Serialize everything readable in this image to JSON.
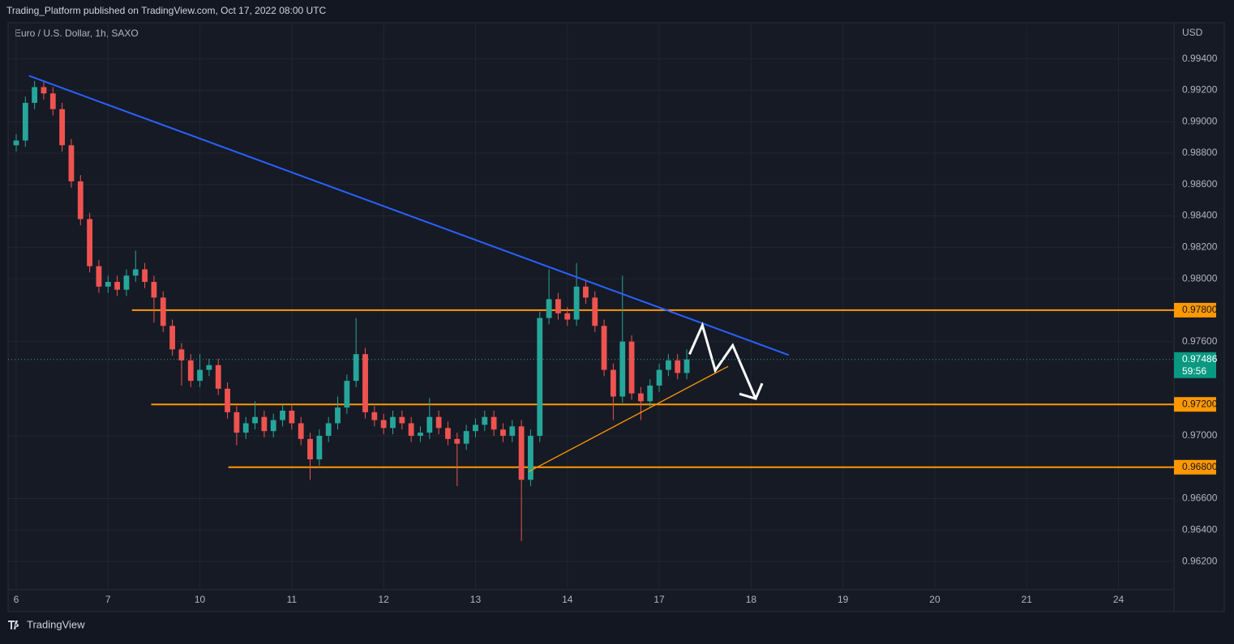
{
  "header": {
    "publisher": "Trading_Platform published on TradingView.com, Oct 17, 2022 08:00 UTC",
    "footer": "TradingView"
  },
  "chart_data": {
    "type": "candlestick",
    "title": "Euro / U.S. Dollar, 1h, SAXO",
    "y_axis_label": "USD",
    "up_color": "#26a69a",
    "down_color": "#ef5350",
    "grid": true,
    "xlim": [
      -0.088,
      12.604
    ],
    "ylim": [
      0.9602,
      0.9962
    ],
    "xticks": [
      {
        "value": 0,
        "label": "6"
      },
      {
        "value": 1,
        "label": "7"
      },
      {
        "value": 2,
        "label": "10"
      },
      {
        "value": 3,
        "label": "11"
      },
      {
        "value": 4,
        "label": "12"
      },
      {
        "value": 5,
        "label": "13"
      },
      {
        "value": 6,
        "label": "14"
      },
      {
        "value": 7,
        "label": "17"
      },
      {
        "value": 8,
        "label": "18"
      },
      {
        "value": 9,
        "label": "19"
      },
      {
        "value": 10,
        "label": "20"
      },
      {
        "value": 11,
        "label": "21"
      },
      {
        "value": 12,
        "label": "24"
      }
    ],
    "yticks": [
      {
        "value": 0.994,
        "label": "0.99400"
      },
      {
        "value": 0.992,
        "label": "0.99200"
      },
      {
        "value": 0.99,
        "label": "0.99000"
      },
      {
        "value": 0.988,
        "label": "0.98800"
      },
      {
        "value": 0.986,
        "label": "0.98600"
      },
      {
        "value": 0.984,
        "label": "0.98400"
      },
      {
        "value": 0.982,
        "label": "0.98200"
      },
      {
        "value": 0.98,
        "label": "0.98000"
      },
      {
        "value": 0.976,
        "label": "0.97600"
      },
      {
        "value": 0.97,
        "label": "0.97000"
      },
      {
        "value": 0.966,
        "label": "0.96600"
      },
      {
        "value": 0.964,
        "label": "0.96400"
      },
      {
        "value": 0.962,
        "label": "0.96200"
      }
    ],
    "x": [
      0,
      0.1,
      0.2,
      0.3,
      0.4,
      0.5,
      0.6,
      0.7,
      0.8,
      0.9,
      1,
      1.1,
      1.2,
      1.3,
      1.4,
      1.5,
      1.6,
      1.7,
      1.8,
      1.9,
      2,
      2.1,
      2.2,
      2.3,
      2.4,
      2.5,
      2.6,
      2.7,
      2.8,
      2.9,
      3,
      3.1,
      3.2,
      3.3,
      3.4,
      3.5,
      3.6,
      3.7,
      3.8,
      3.9,
      4,
      4.1,
      4.2,
      4.3,
      4.4,
      4.5,
      4.6,
      4.7,
      4.8,
      4.9,
      5,
      5.1,
      5.2,
      5.3,
      5.4,
      5.5,
      5.6,
      5.7,
      5.8,
      5.9,
      6,
      6.1,
      6.2,
      6.3,
      6.4,
      6.5,
      6.6,
      6.7,
      6.8,
      6.9,
      7,
      7.1,
      7.2,
      7.3
    ],
    "open": [
      0.9885,
      0.9888,
      0.9912,
      0.9922,
      0.9918,
      0.9908,
      0.9885,
      0.9862,
      0.9838,
      0.9808,
      0.9795,
      0.9798,
      0.9793,
      0.9802,
      0.9806,
      0.9798,
      0.9788,
      0.977,
      0.9755,
      0.9748,
      0.9735,
      0.9742,
      0.9745,
      0.973,
      0.9715,
      0.9702,
      0.9708,
      0.9712,
      0.9703,
      0.971,
      0.9716,
      0.9708,
      0.9698,
      0.9685,
      0.97,
      0.9708,
      0.9718,
      0.9735,
      0.9752,
      0.9715,
      0.971,
      0.9705,
      0.9712,
      0.9708,
      0.97,
      0.9702,
      0.9712,
      0.9705,
      0.9698,
      0.9695,
      0.9703,
      0.9707,
      0.9712,
      0.9704,
      0.97,
      0.9706,
      0.9672,
      0.97,
      0.9775,
      0.9787,
      0.9778,
      0.9774,
      0.9795,
      0.9788,
      0.977,
      0.9742,
      0.9725,
      0.976,
      0.9727,
      0.9722,
      0.9732,
      0.9742,
      0.9748,
      0.974
    ],
    "high": [
      0.9892,
      0.9916,
      0.9926,
      0.9926,
      0.9922,
      0.9912,
      0.9889,
      0.9866,
      0.9842,
      0.9812,
      0.9802,
      0.9802,
      0.9806,
      0.9818,
      0.981,
      0.9802,
      0.9792,
      0.9774,
      0.9759,
      0.9752,
      0.9752,
      0.9749,
      0.9749,
      0.9734,
      0.9719,
      0.9712,
      0.9722,
      0.9716,
      0.9714,
      0.972,
      0.972,
      0.9712,
      0.9702,
      0.9704,
      0.9712,
      0.9725,
      0.9739,
      0.9775,
      0.9756,
      0.9719,
      0.9714,
      0.9716,
      0.9716,
      0.9712,
      0.9706,
      0.9724,
      0.9716,
      0.9709,
      0.9702,
      0.9707,
      0.9711,
      0.9716,
      0.9716,
      0.9708,
      0.971,
      0.971,
      0.9704,
      0.9779,
      0.9806,
      0.9791,
      0.9782,
      0.981,
      0.9799,
      0.9792,
      0.9774,
      0.9746,
      0.9802,
      0.9764,
      0.9731,
      0.9736,
      0.9746,
      0.9752,
      0.9752,
      0.9755
    ],
    "low": [
      0.9881,
      0.9884,
      0.9908,
      0.9914,
      0.9904,
      0.9881,
      0.9858,
      0.9834,
      0.9804,
      0.9791,
      0.9791,
      0.9789,
      0.9789,
      0.9798,
      0.9794,
      0.9772,
      0.9766,
      0.9751,
      0.9732,
      0.9731,
      0.9731,
      0.9738,
      0.9726,
      0.9711,
      0.9694,
      0.9698,
      0.9704,
      0.9699,
      0.9699,
      0.9706,
      0.9704,
      0.9694,
      0.9672,
      0.9681,
      0.9696,
      0.9704,
      0.9714,
      0.9731,
      0.9711,
      0.9706,
      0.9701,
      0.9701,
      0.9704,
      0.9696,
      0.9696,
      0.9698,
      0.9701,
      0.9694,
      0.9668,
      0.9691,
      0.9699,
      0.9703,
      0.97,
      0.9696,
      0.9696,
      0.9633,
      0.9668,
      0.9696,
      0.9771,
      0.9774,
      0.977,
      0.977,
      0.9784,
      0.9766,
      0.9738,
      0.971,
      0.9721,
      0.9723,
      0.971,
      0.9718,
      0.9728,
      0.9738,
      0.9736,
      0.9736
    ],
    "close": [
      0.9888,
      0.9912,
      0.9922,
      0.9918,
      0.9908,
      0.9885,
      0.9862,
      0.9838,
      0.9808,
      0.9795,
      0.9798,
      0.9793,
      0.9802,
      0.9806,
      0.9798,
      0.9788,
      0.977,
      0.9755,
      0.9748,
      0.9735,
      0.9742,
      0.9745,
      0.973,
      0.9715,
      0.9702,
      0.9708,
      0.9712,
      0.9703,
      0.971,
      0.9716,
      0.9708,
      0.9698,
      0.9685,
      0.97,
      0.9708,
      0.9718,
      0.9735,
      0.9752,
      0.9715,
      0.971,
      0.9705,
      0.9712,
      0.9708,
      0.97,
      0.9702,
      0.9712,
      0.9705,
      0.9698,
      0.9695,
      0.9703,
      0.9707,
      0.9712,
      0.9704,
      0.97,
      0.9706,
      0.9672,
      0.97,
      0.9775,
      0.9787,
      0.9778,
      0.9774,
      0.9795,
      0.9788,
      0.977,
      0.9742,
      0.9725,
      0.976,
      0.9727,
      0.9722,
      0.9732,
      0.9742,
      0.9748,
      0.974,
      0.97486
    ],
    "countdown": "59:56",
    "level_color": "#ff9800",
    "levels": [
      {
        "value": 0.978,
        "label": "0.97800",
        "from": 1.26
      },
      {
        "value": 0.972,
        "label": "0.97200",
        "from": 1.47
      },
      {
        "value": 0.968,
        "label": "0.96800",
        "from": 2.31
      }
    ],
    "trendlines": [
      {
        "color": "#2962ff",
        "x": [
          0.14,
          8.41
        ],
        "y": [
          0.99292,
          0.97514
        ]
      },
      {
        "color": "#ff9800",
        "x": [
          5.58,
          7.75
        ],
        "y": [
          0.96772,
          0.97442
        ]
      }
    ],
    "projection": {
      "color": "#ffffff",
      "x": [
        7.33,
        7.47,
        7.61,
        7.8,
        8.05
      ],
      "y": [
        0.97519,
        0.97704,
        0.97416,
        0.97576,
        0.97236
      ]
    }
  }
}
